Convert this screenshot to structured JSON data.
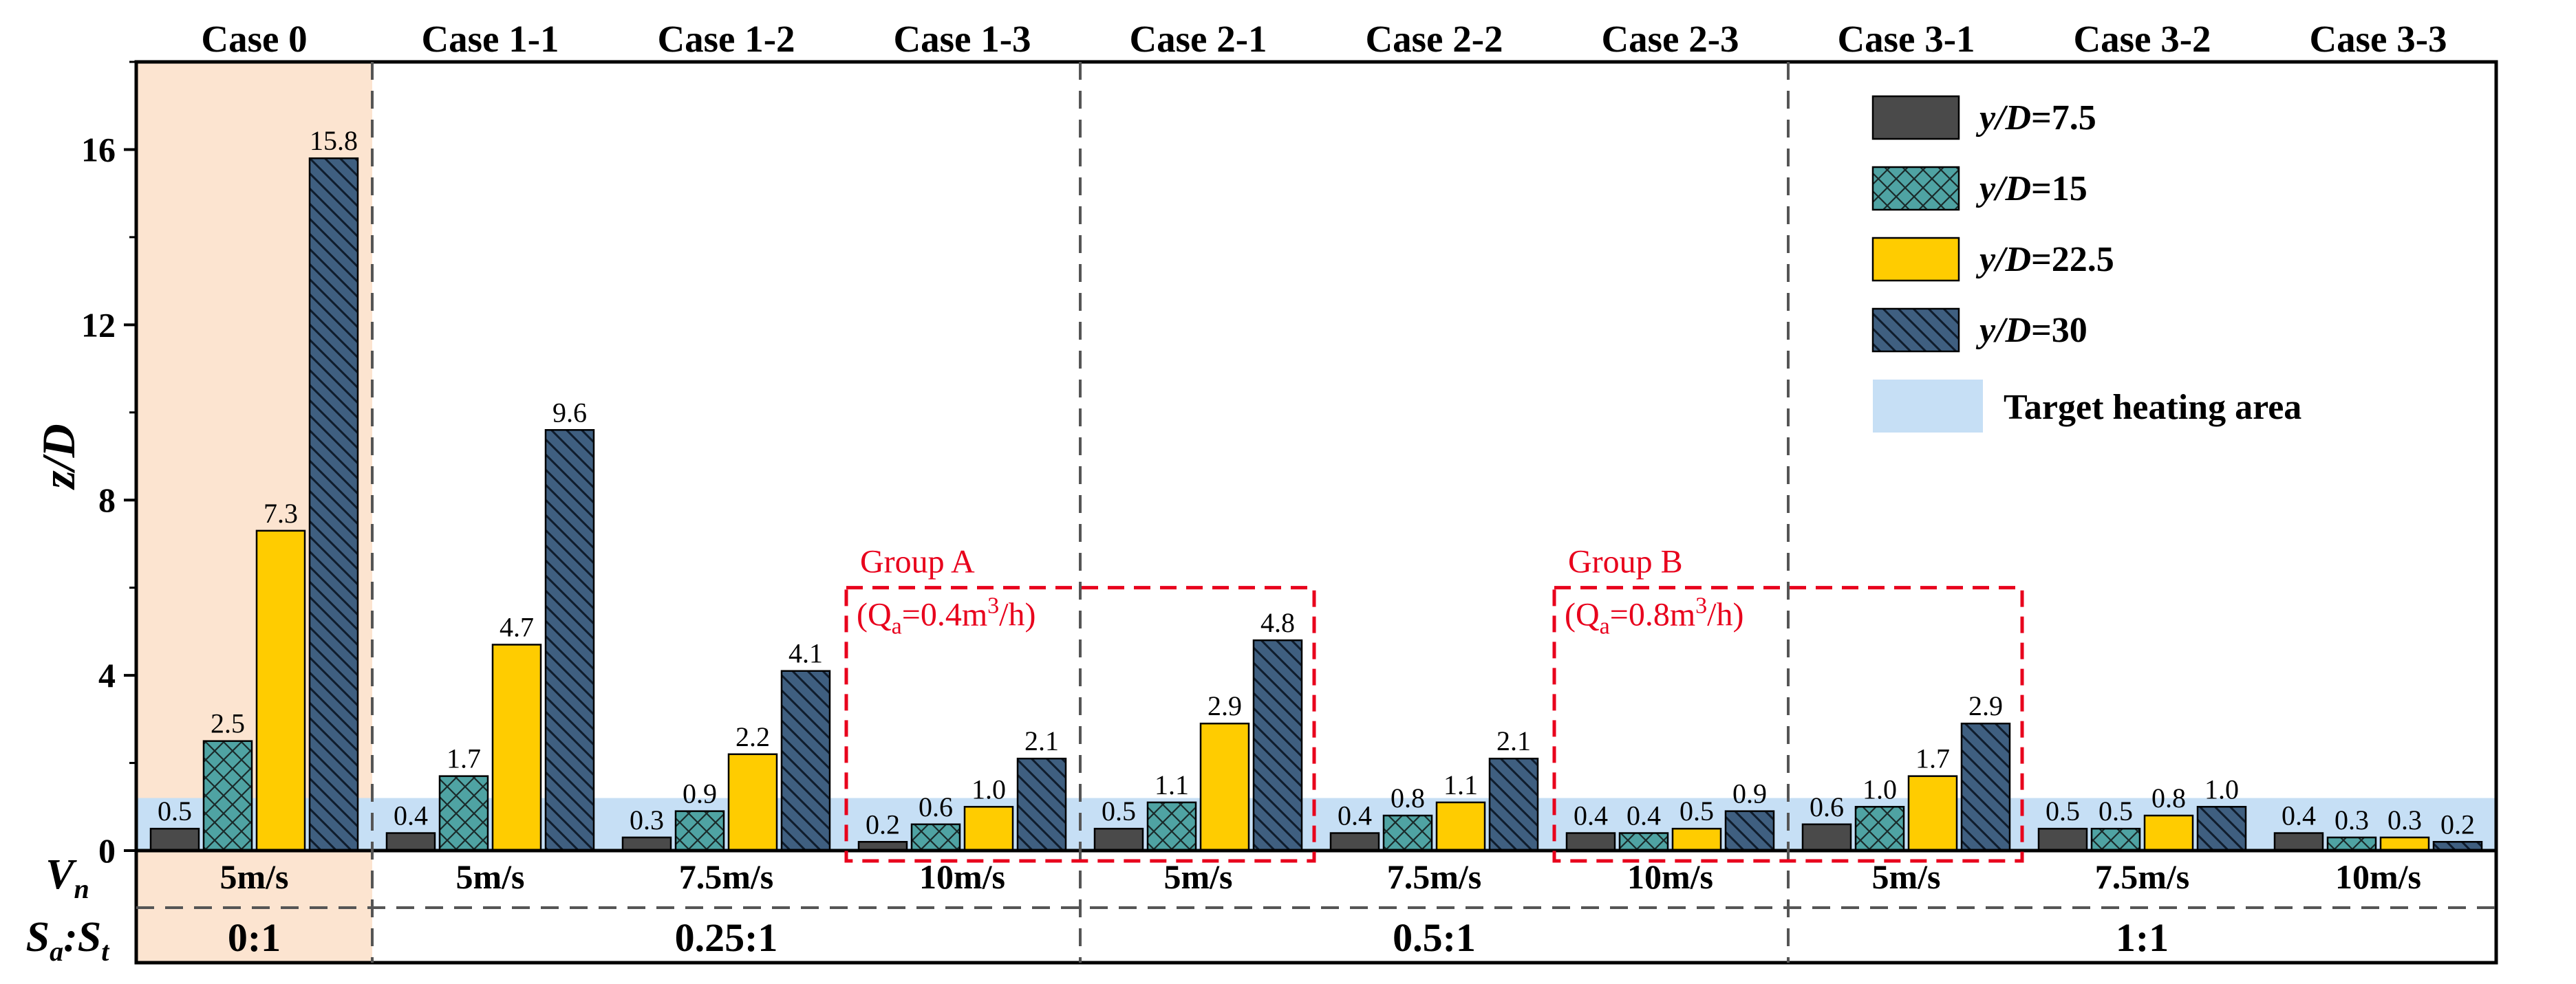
{
  "chart_data": {
    "type": "bar",
    "cases": [
      "Case 0",
      "Case 1-1",
      "Case 1-2",
      "Case 1-3",
      "Case 2-1",
      "Case 2-2",
      "Case 2-3",
      "Case 3-1",
      "Case 3-2",
      "Case 3-3"
    ],
    "series": [
      {
        "name": "y/D=7.5",
        "label_italic": "y/D",
        "label_value": "=7.5",
        "color": "#4a4a4a",
        "pattern": "solid",
        "values": [
          0.5,
          0.4,
          0.3,
          0.2,
          0.5,
          0.4,
          0.4,
          0.6,
          0.5,
          0.4
        ],
        "labels": [
          "0.5",
          "0.4",
          "0.3",
          "0.2",
          "0.5",
          "0.4",
          "0.4",
          "0.6",
          "0.5",
          "0.4"
        ]
      },
      {
        "name": "y/D=15",
        "label_italic": "y/D",
        "label_value": "=15",
        "color": "#4fa3a3",
        "pattern": "crosshatch",
        "values": [
          2.5,
          1.7,
          0.9,
          0.6,
          1.1,
          0.8,
          0.4,
          1.0,
          0.5,
          0.3
        ],
        "labels": [
          "2.5",
          "1.7",
          "0.9",
          "0.6",
          "1.1",
          "0.8",
          "0.4",
          "1.0",
          "0.5",
          "0.3"
        ]
      },
      {
        "name": "y/D=22.5",
        "label_italic": "y/D",
        "label_value": "=22.5",
        "color": "#ffcc00",
        "pattern": "solid",
        "values": [
          7.3,
          4.7,
          2.2,
          1.0,
          2.9,
          1.1,
          0.5,
          1.7,
          0.8,
          0.3
        ],
        "labels": [
          "7.3",
          "4.7",
          "2.2",
          "1.0",
          "2.9",
          "1.1",
          "0.5",
          "1.7",
          "0.8",
          "0.3"
        ]
      },
      {
        "name": "y/D=30",
        "label_italic": "y/D",
        "label_value": "=30",
        "color": "#3f5f80",
        "pattern": "diagonal",
        "values": [
          15.8,
          9.6,
          4.1,
          2.1,
          4.8,
          2.1,
          0.9,
          2.9,
          1.0,
          0.2
        ],
        "labels": [
          "15.8",
          "9.6",
          "4.1",
          "2.1",
          "4.8",
          "2.1",
          "0.9",
          "2.9",
          "1.0",
          "0.2"
        ]
      }
    ],
    "ylabel": "z/D",
    "ylim": [
      0,
      18
    ],
    "yticks": [
      0,
      4,
      8,
      12,
      16
    ],
    "ytick_labels": [
      "0",
      "4",
      "8",
      "12",
      "16"
    ],
    "target_area": {
      "label": "Target heating area",
      "range": [
        0,
        1.2
      ],
      "color": "#c6dff5"
    },
    "vn_row": {
      "label_main": "V",
      "label_sub": "n",
      "values": [
        "5m/s",
        "5m/s",
        "7.5m/s",
        "10m/s",
        "5m/s",
        "7.5m/s",
        "10m/s",
        "5m/s",
        "7.5m/s",
        "10m/s"
      ]
    },
    "ratio_row": {
      "label_a": "S",
      "label_a_sub": "a",
      "label_sep": ":",
      "label_b": "S",
      "label_b_sub": "t",
      "groups": [
        {
          "label": "0:1",
          "start_case": 0,
          "end_case": 0
        },
        {
          "label": "0.25:1",
          "start_case": 1,
          "end_case": 3
        },
        {
          "label": "0.5:1",
          "start_case": 4,
          "end_case": 6
        },
        {
          "label": "1:1",
          "start_case": 7,
          "end_case": 9
        }
      ]
    },
    "highlight_case": 0,
    "highlight_color": "#fce4d0",
    "annotations": [
      {
        "title": "Group A",
        "prefix": "(Q",
        "sub": "a",
        "middle": "=0.4m",
        "sup": "3",
        "suffix": "/h)",
        "start_case": 3,
        "end_case": 4,
        "top_value": 6.0
      },
      {
        "title": "Group B",
        "prefix": "(Q",
        "sub": "a",
        "middle": "=0.8m",
        "sup": "3",
        "suffix": "/h)",
        "start_case": 6,
        "end_case": 7,
        "top_value": 6.0
      }
    ],
    "legend_position": "top-right"
  }
}
